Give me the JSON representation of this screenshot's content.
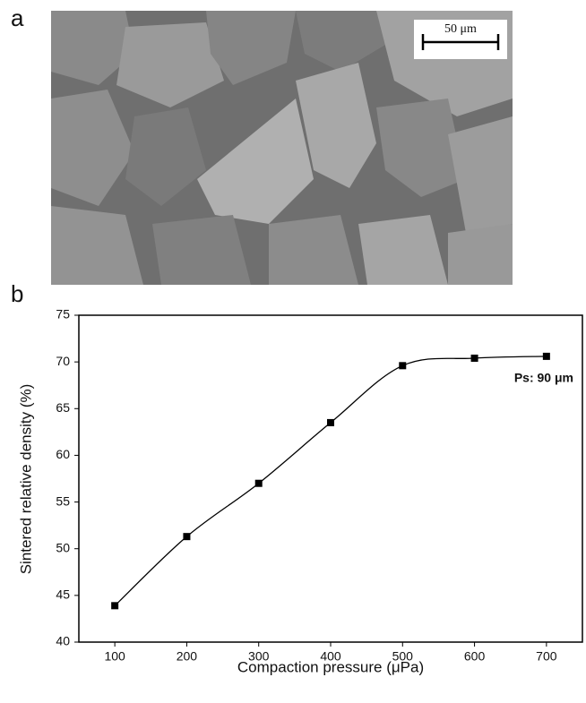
{
  "figure": {
    "panel_a": "a",
    "panel_b": "b",
    "scale_bar": "50 μm"
  },
  "chart_data": {
    "type": "line",
    "x_label": "Compaction pressure (μPa)",
    "y_label": "Sintered relative density (%)",
    "annotation": "Ps: 90 μm",
    "x": [
      100,
      200,
      300,
      400,
      500,
      600,
      700
    ],
    "series": [
      {
        "name": "Ps: 90 μm",
        "color": "#000000",
        "values": [
          43.9,
          51.3,
          57,
          63.5,
          69.6,
          70.4,
          70.6
        ]
      }
    ],
    "xlim": [
      50,
      750
    ],
    "xticks": [
      100,
      200,
      300,
      400,
      500,
      600,
      700
    ],
    "ylim": [
      40,
      75
    ],
    "yticks": [
      40,
      45,
      50,
      55,
      60,
      65,
      70,
      75
    ],
    "grid": false
  }
}
